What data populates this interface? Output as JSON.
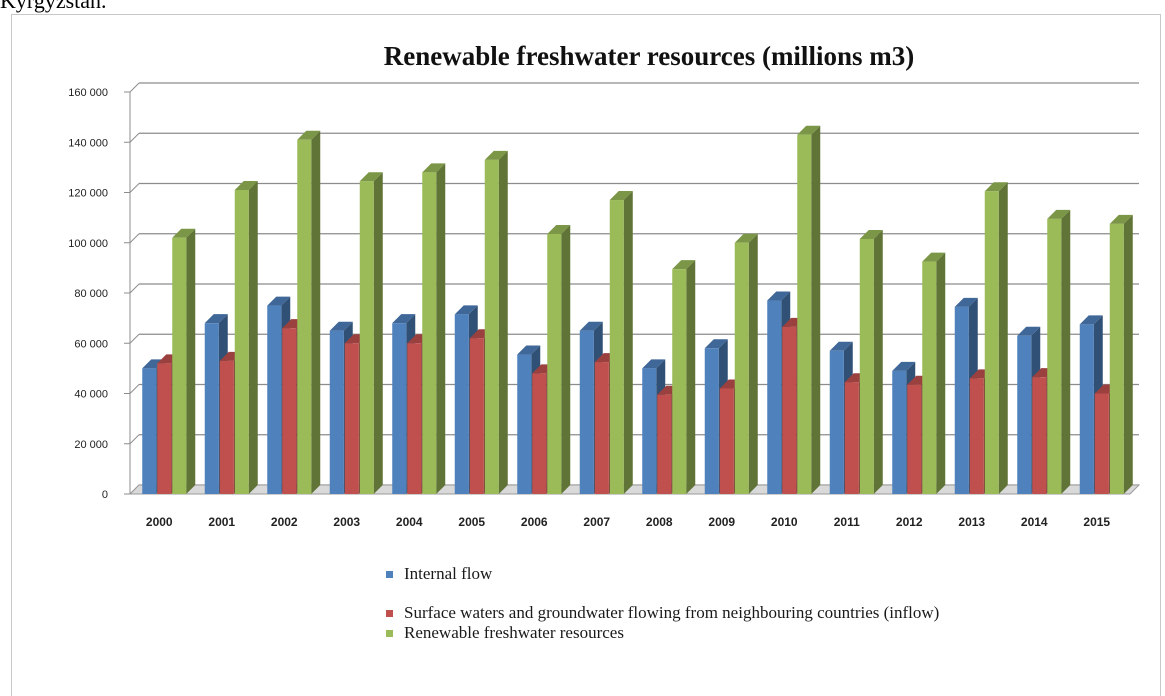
{
  "caption": {
    "text": "Kyrgyzstan."
  },
  "chart_data": {
    "type": "bar",
    "title": "Renewable freshwater resources (millions m3)",
    "xlabel": "",
    "ylabel": "",
    "ylim": [
      0,
      160000
    ],
    "yticks": [
      0,
      20000,
      40000,
      60000,
      80000,
      100000,
      120000,
      140000,
      160000
    ],
    "ytick_labels": [
      "0",
      "20 000",
      "40 000",
      "60 000",
      "80 000",
      "100 000",
      "120 000",
      "140 000",
      "160 000"
    ],
    "categories": [
      "2000",
      "2001",
      "2002",
      "2003",
      "2004",
      "2005",
      "2006",
      "2007",
      "2008",
      "2009",
      "2010",
      "2011",
      "2012",
      "2013",
      "2014",
      "2015"
    ],
    "grid": true,
    "legend_position": "bottom",
    "series": [
      {
        "name": "Internal flow",
        "color": "#4f81bd",
        "values": [
          50000,
          68000,
          75000,
          65000,
          68000,
          71500,
          55500,
          65000,
          50000,
          58000,
          77000,
          57000,
          49000,
          74500,
          63000,
          67500
        ]
      },
      {
        "name": "Surface waters and groundwater flowing from neighbouring countries (inflow)",
        "color": "#c0504d",
        "values": [
          52000,
          53000,
          66000,
          60000,
          60000,
          62000,
          48000,
          52500,
          39500,
          42000,
          66500,
          44500,
          43500,
          46000,
          46500,
          40000
        ]
      },
      {
        "name": "Renewable freshwater resources",
        "color": "#9bbb59",
        "values": [
          102000,
          121000,
          141000,
          124500,
          128000,
          133000,
          103500,
          117000,
          89500,
          100000,
          143000,
          101500,
          92500,
          120500,
          109500,
          107500
        ]
      }
    ]
  },
  "legend": {
    "items": [
      {
        "label": "Internal flow",
        "color": "#4f81bd"
      },
      {
        "label": "Surface waters and groundwater flowing from neighbouring countries (inflow)",
        "color": "#c0504d"
      },
      {
        "label": "Renewable freshwater resources",
        "color": "#9bbb59"
      }
    ]
  }
}
